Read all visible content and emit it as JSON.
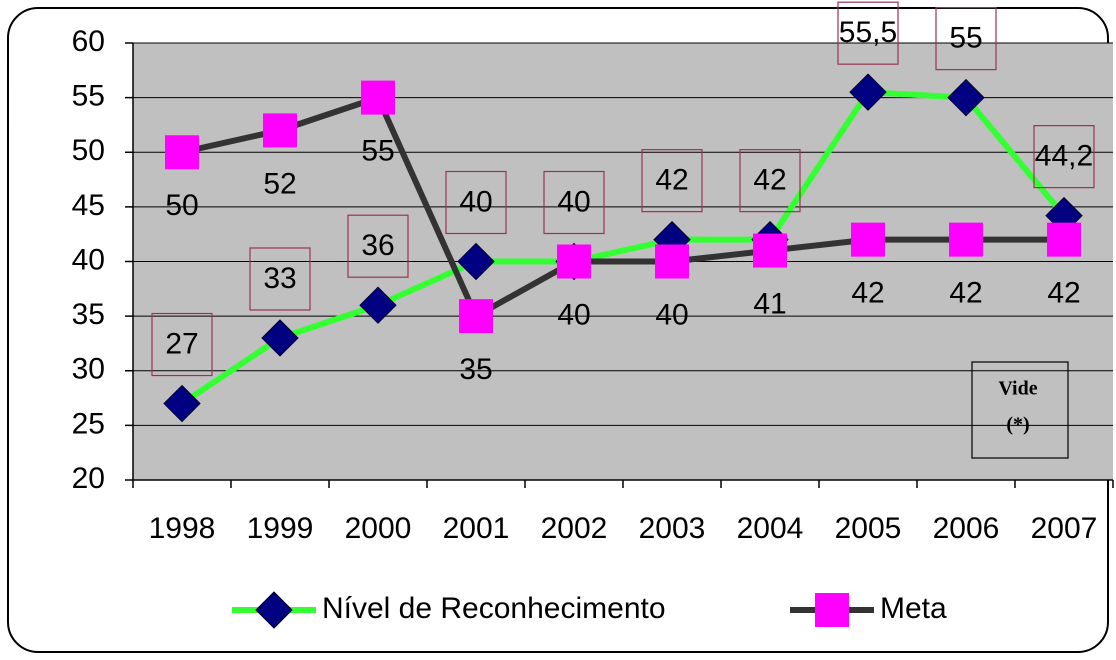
{
  "chart_data": {
    "type": "line",
    "categories": [
      "1998",
      "1999",
      "2000",
      "2001",
      "2002",
      "2003",
      "2004",
      "2005",
      "2006",
      "2007"
    ],
    "series": [
      {
        "name": "Nível de Reconhecimento",
        "color": "#33ff33",
        "marker_color": "#000080",
        "values": [
          27,
          33,
          36,
          40,
          40,
          42,
          42,
          55.5,
          55,
          44.2
        ],
        "value_labels": [
          "27",
          "33",
          "36",
          "40",
          "40",
          "42",
          "42",
          "55,5",
          "55",
          "44,2"
        ]
      },
      {
        "name": "Meta",
        "color": "#333333",
        "marker_color": "#ff00ff",
        "values": [
          50,
          52,
          55,
          35,
          40,
          40,
          41,
          42,
          42,
          42
        ]
      }
    ],
    "ylim": [
      20,
      60
    ],
    "yticks": [
      20,
      25,
      30,
      35,
      40,
      45,
      50,
      55,
      60
    ],
    "grid": true,
    "legend": "bottom",
    "annotation": [
      "Vide",
      "(*)"
    ]
  }
}
